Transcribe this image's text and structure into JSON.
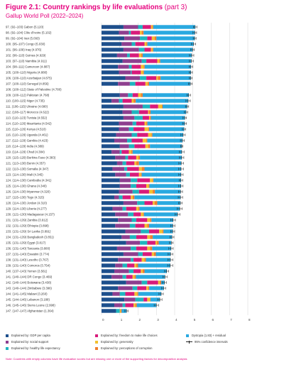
{
  "figure": {
    "title_bold": "Figure 2.1: Country rankings by life evaluations",
    "title_rest": " (part 3)",
    "subtitle": "Gallup World Poll (2022–2024)",
    "note": "Note: Countries with empty columns have life evaluation scores but are missing one or more of the supporting factors for decomposition analysis"
  },
  "colors": {
    "gdp": "#1d4f8c",
    "social": "#8e3f8f",
    "health": "#1fb5bf",
    "freedom": "#d81b7b",
    "generosity": "#f2c12e",
    "corruption": "#f07d2e",
    "dystopia": "#29a9e0",
    "ci": "#222222",
    "title": "#e6007e"
  },
  "legend": {
    "gdp": "Explained by: GDP per capita",
    "social": "Explained by: social support",
    "health": "Explained by: healthy life expectancy",
    "freedom": "Explained by: freedom to make life choices",
    "generosity": "Explained by: generosity",
    "corruption": "Explained by: perceptions of corruption",
    "dystopia": "Dystopia (1.83) + residual",
    "ci": "95% confidence intervals"
  },
  "chart_data": {
    "type": "bar",
    "orientation": "horizontal",
    "stacked": true,
    "xlim": [
      0,
      8
    ],
    "xticks": [
      0,
      1,
      2,
      3,
      4,
      5,
      6,
      7,
      8
    ],
    "legend_position": "bottom",
    "categories": [
      "97.    (92–103) Gabon (5.120)",
      "98.    (92–104) Côte d’Ivoire (5.102)",
      "99.    (92–104) Iran (5.093)",
      "100.  (95–107) Congo (5.030)",
      "101.  (96–109) Iraq (4.976)",
      "102.  (96–110) Guinea (4.929)",
      "103.  (97–110) Namibia (4.911)",
      "104.  (98–111) Cameroon (4.887)",
      "105.  (100–110) Nigeria (4.880)",
      "106.  (100–110) Azerbaijan (4.875)",
      "107.  (100–110) Senegal (4.856)",
      "108.  (100–112) State of Palestine (4.780)",
      "109.  (100–112) Pakistan (4.768)",
      "110.  (100–115) Niger (4.735)",
      "111.   (106–115) Ukraine (4.680)",
      "112.   (108–117) Morocco (4.622)",
      "113.   (110–123) Tunisia (4.552)",
      "114.   (110–126) Mauritania (4.542)",
      "115.   (110–126) Kenya (4.510)",
      "116.   (110–129) Uganda (4.461)",
      "117.   (112–129) Gambia (4.423)",
      "118.   (114–129) India (4.389)",
      "119.   (114–129) Chad (4.384)",
      "120.  (115–129) Burkina Faso (4.383)",
      "121.   (113–130) Benin (4.357)",
      "122.  (113–130) Somalia (4.347)",
      "123.  (114–130) Mali (4.345)",
      "124.  (114–130) Cambodia (4.341)",
      "125.  (114–130) Ghana (4.340)",
      "126.  (114–130) Myanmar (4.320)",
      "127.  (115–130) Togo (4.315)",
      "128.  (114–130) Jordan (4.310)",
      "129.  (114–130) Liberia (4.277)",
      "130.  (121–130) Madagascar (4.157)",
      "131.   (131–139) Zambia (3.912)",
      "132.  (131–139) Ethiopia (3.898)",
      "133.  (131–139) Sri Lanka (3.891)",
      "134.  (131–139) Bangladesh (3.851)",
      "135.  (131–139) Egypt (3.817)",
      "136.  (131–140) Tanzania (3.800)",
      "137.  (131–140) Eswatini (3.774)",
      "138.  (131–140) Lesotho (3.767)",
      "139.  (131–140) Comoros (3.754)",
      "140.  (137–143) Yemen (3.561)",
      "141.   (140–144) DR Congo (3.469)",
      "142.  (140–144) Botswana (3.438)",
      "143.  (140–144) Zimbabwe (3.396)",
      "144.  (141–145) Malawi (3.260)",
      "145.  (144–146) Lebanon (3.188)",
      "146.  (145–146) Sierra Leone (2.998)",
      "147.  (147–147) Afghanistan (1.364)"
    ],
    "scores": [
      5.12,
      5.102,
      5.093,
      5.03,
      4.976,
      4.929,
      4.911,
      4.887,
      4.88,
      4.875,
      4.856,
      4.78,
      4.768,
      4.735,
      4.68,
      4.622,
      4.552,
      4.542,
      4.51,
      4.461,
      4.423,
      4.389,
      4.384,
      4.383,
      4.357,
      4.347,
      4.345,
      4.341,
      4.34,
      4.32,
      4.315,
      4.31,
      4.277,
      4.157,
      3.912,
      3.898,
      3.891,
      3.851,
      3.817,
      3.8,
      3.774,
      3.767,
      3.754,
      3.561,
      3.469,
      3.438,
      3.396,
      3.26,
      3.188,
      2.998,
      1.364
    ],
    "ci_half_width": [
      0.1,
      0.1,
      0.08,
      0.12,
      0.1,
      0.12,
      0.11,
      0.1,
      0.09,
      0.08,
      0.1,
      0.0,
      0.1,
      0.12,
      0.09,
      0.09,
      0.1,
      0.11,
      0.09,
      0.12,
      0.11,
      0.06,
      0.13,
      0.12,
      0.13,
      0.13,
      0.12,
      0.1,
      0.12,
      0.11,
      0.12,
      0.1,
      0.14,
      0.14,
      0.13,
      0.12,
      0.11,
      0.11,
      0.1,
      0.12,
      0.13,
      0.14,
      0.14,
      0.11,
      0.12,
      0.11,
      0.11,
      0.12,
      0.12,
      0.12,
      0.09
    ],
    "series": [
      {
        "key": "gdp",
        "name": "Explained by: GDP per capita",
        "values": [
          1.2,
          0.95,
          1.25,
          1.1,
          1.2,
          0.85,
          1.15,
          0.9,
          0.95,
          1.3,
          0.9,
          0.0,
          1.0,
          0.55,
          1.2,
          1.15,
          1.2,
          0.95,
          0.95,
          0.8,
          0.7,
          1.0,
          0.55,
          0.75,
          0.85,
          0.6,
          0.75,
          1.0,
          1.0,
          0.95,
          0.7,
          1.2,
          0.6,
          0.75,
          0.9,
          0.75,
          1.3,
          1.1,
          1.35,
          0.85,
          1.2,
          0.9,
          0.75,
          0.7,
          0.55,
          1.35,
          0.9,
          0.6,
          1.25,
          0.7,
          0.8
        ]
      },
      {
        "key": "social",
        "name": "Explained by: social support",
        "values": [
          0.8,
          0.55,
          0.85,
          0.55,
          0.85,
          0.55,
          1.05,
          0.6,
          0.65,
          0.8,
          0.65,
          0.0,
          0.45,
          0.4,
          1.05,
          0.5,
          0.6,
          0.75,
          0.55,
          0.85,
          0.7,
          0.5,
          0.45,
          0.55,
          0.3,
          0.65,
          0.6,
          0.6,
          0.6,
          0.75,
          0.25,
          0.75,
          0.55,
          0.7,
          0.75,
          0.8,
          0.85,
          0.45,
          0.75,
          0.75,
          0.8,
          0.7,
          0.4,
          0.8,
          0.6,
          0.85,
          0.8,
          0.4,
          0.6,
          0.45,
          0.0
        ]
      },
      {
        "key": "health",
        "name": "Explained by: healthy life expectancy",
        "values": [
          0.25,
          0.1,
          0.4,
          0.2,
          0.3,
          0.15,
          0.25,
          0.15,
          0.05,
          0.35,
          0.3,
          0.0,
          0.25,
          0.2,
          0.4,
          0.4,
          0.45,
          0.2,
          0.25,
          0.3,
          0.25,
          0.3,
          0.1,
          0.15,
          0.2,
          0.15,
          0.2,
          0.35,
          0.3,
          0.35,
          0.2,
          0.4,
          0.2,
          0.3,
          0.25,
          0.3,
          0.45,
          0.35,
          0.4,
          0.3,
          0.25,
          0.15,
          0.25,
          0.25,
          0.2,
          0.3,
          0.25,
          0.3,
          0.45,
          0.15,
          0.2
        ]
      },
      {
        "key": "freedom",
        "name": "Explained by: freedom to make life choices",
        "values": [
          0.45,
          0.5,
          0.25,
          0.5,
          0.35,
          0.5,
          0.6,
          0.5,
          0.5,
          0.55,
          0.55,
          0.0,
          0.3,
          0.5,
          0.45,
          0.5,
          0.35,
          0.45,
          0.6,
          0.6,
          0.6,
          0.6,
          0.4,
          0.45,
          0.45,
          0.65,
          0.5,
          0.7,
          0.55,
          0.55,
          0.45,
          0.45,
          0.55,
          0.4,
          0.6,
          0.5,
          0.55,
          0.6,
          0.45,
          0.6,
          0.5,
          0.45,
          0.4,
          0.4,
          0.35,
          0.6,
          0.5,
          0.5,
          0.2,
          0.45,
          0.0
        ]
      },
      {
        "key": "generosity",
        "name": "Explained by: generosity",
        "values": [
          0.08,
          0.1,
          0.15,
          0.1,
          0.08,
          0.12,
          0.1,
          0.15,
          0.12,
          0.08,
          0.12,
          0.0,
          0.15,
          0.1,
          0.2,
          0.05,
          0.05,
          0.1,
          0.2,
          0.18,
          0.2,
          0.15,
          0.12,
          0.12,
          0.1,
          0.15,
          0.1,
          0.15,
          0.12,
          0.2,
          0.1,
          0.1,
          0.12,
          0.12,
          0.15,
          0.15,
          0.18,
          0.15,
          0.08,
          0.15,
          0.12,
          0.15,
          0.1,
          0.1,
          0.1,
          0.08,
          0.1,
          0.15,
          0.15,
          0.1,
          0.05
        ]
      },
      {
        "key": "corruption",
        "name": "Explained by: perceptions of corruption",
        "values": [
          0.05,
          0.1,
          0.1,
          0.06,
          0.05,
          0.08,
          0.06,
          0.06,
          0.05,
          0.15,
          0.08,
          0.0,
          0.1,
          0.12,
          0.04,
          0.08,
          0.05,
          0.06,
          0.05,
          0.05,
          0.05,
          0.1,
          0.08,
          0.08,
          0.15,
          0.15,
          0.05,
          0.04,
          0.05,
          0.12,
          0.1,
          0.15,
          0.06,
          0.05,
          0.08,
          0.1,
          0.06,
          0.15,
          0.1,
          0.12,
          0.1,
          0.08,
          0.1,
          0.1,
          0.08,
          0.08,
          0.06,
          0.06,
          0.03,
          0.08,
          0.05
        ]
      }
    ]
  }
}
